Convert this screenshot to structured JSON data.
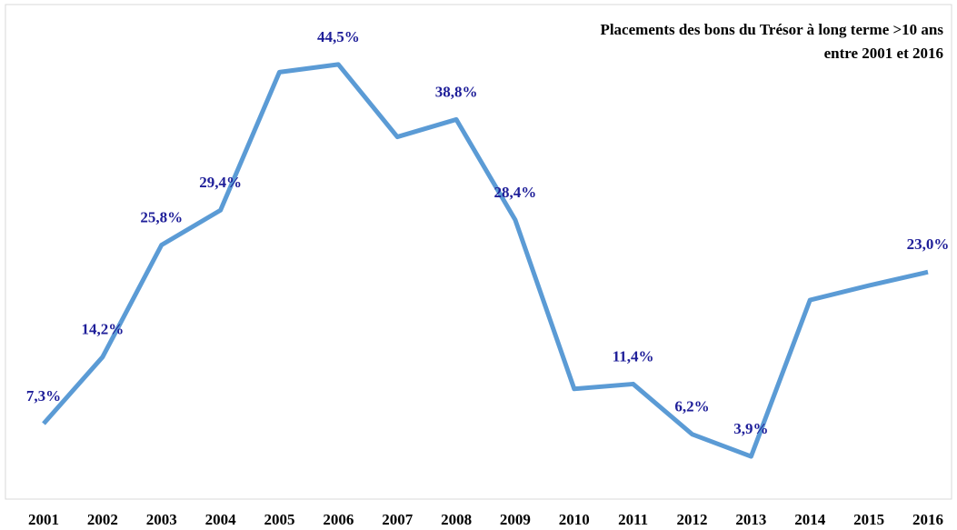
{
  "chart_data": {
    "type": "line",
    "title": [
      "Placements des bons du Trésor à long terme >10 ans",
      "entre 2001 et 2016"
    ],
    "categories": [
      "2001",
      "2002",
      "2003",
      "2004",
      "2005",
      "2006",
      "2007",
      "2008",
      "2009",
      "2010",
      "2011",
      "2012",
      "2013",
      "2014",
      "2015",
      "2016"
    ],
    "series": [
      {
        "color": "#5b9bd5",
        "values": [
          7.3,
          14.2,
          25.8,
          29.4,
          43.7,
          44.5,
          37.0,
          38.8,
          28.4,
          10.9,
          11.4,
          6.2,
          3.9,
          20.1,
          21.6,
          23.0
        ],
        "value_labels": [
          "7,3%",
          "14,2%",
          "25,8%",
          "29,4%",
          null,
          "44,5%",
          null,
          "38,8%",
          "28,4%",
          null,
          "11,4%",
          "6,2%",
          "3,9%",
          null,
          null,
          "23,0%"
        ]
      }
    ],
    "label_color": "#1f1f99",
    "ylim": [
      0,
      50
    ]
  }
}
